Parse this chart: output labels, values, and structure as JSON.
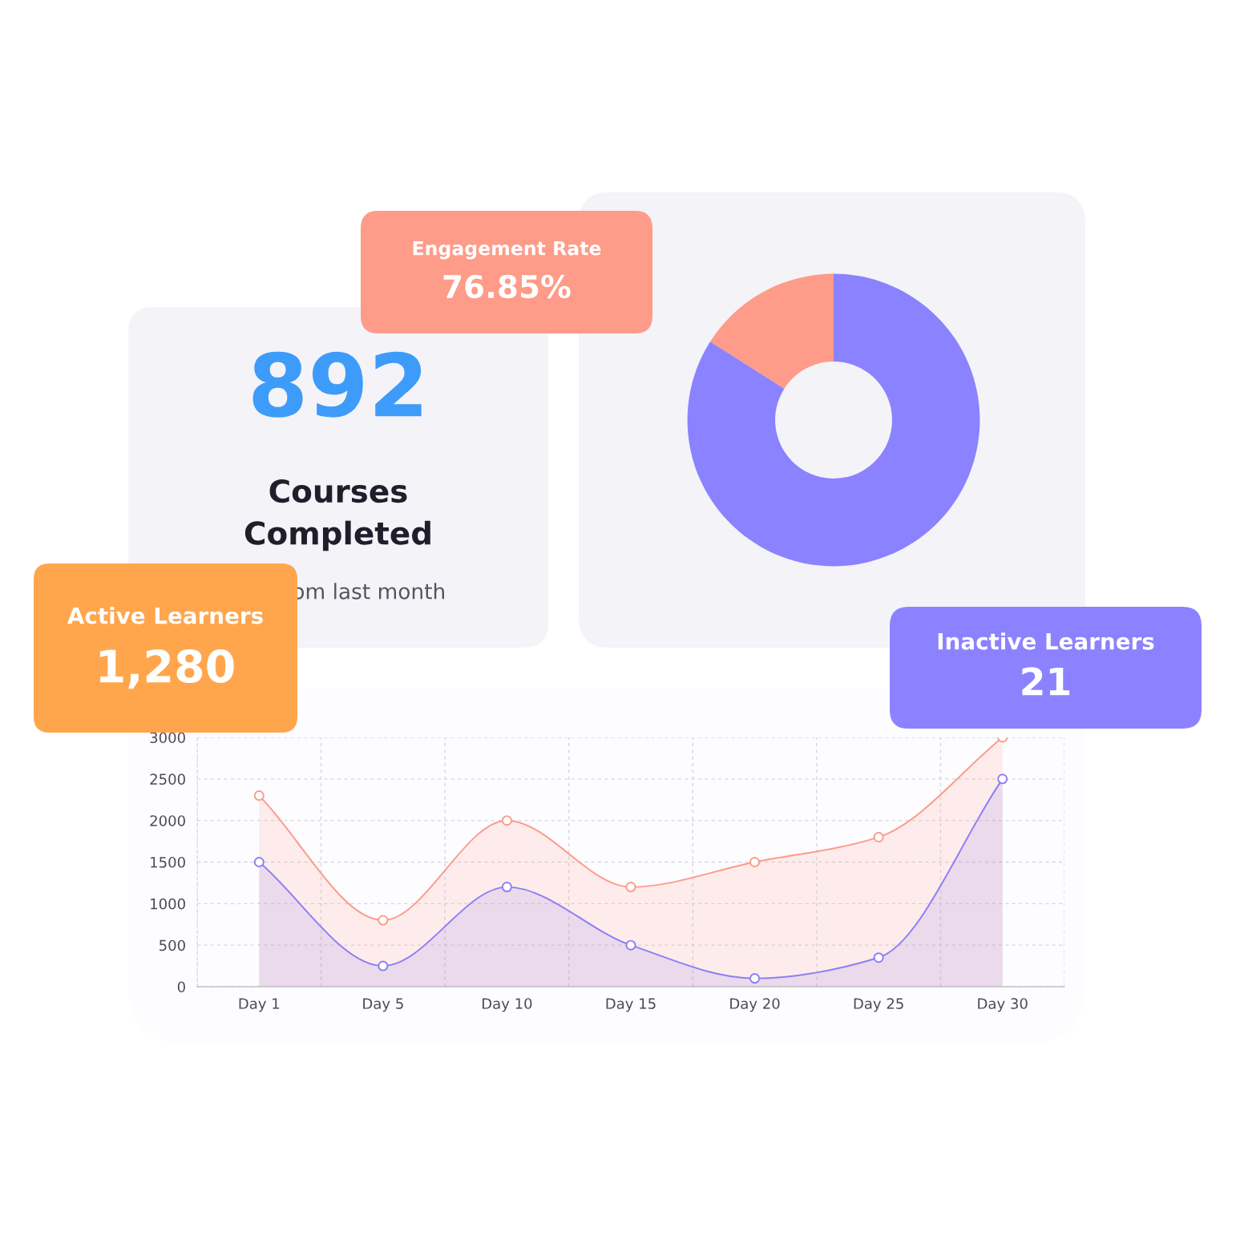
{
  "chart_data": [
    {
      "type": "other",
      "title": "Engagement Rate",
      "annotations": [
        "76.85%"
      ]
    },
    {
      "type": "donut",
      "categories": [
        null,
        null
      ],
      "values": [
        16,
        84
      ],
      "colors": [
        "#ff9b89",
        "#8b82ff"
      ]
    },
    {
      "type": "other",
      "title": "892",
      "subtitle": "Courses Completed",
      "annotations": [
        "om last month"
      ]
    },
    {
      "type": "other",
      "title": "Active Learners",
      "annotations": [
        "1,280"
      ]
    },
    {
      "type": "other",
      "title": "Inactive Learners",
      "annotations": [
        "21"
      ]
    },
    {
      "type": "area",
      "categories": [
        "Day 1",
        "Day 5",
        "Day 10",
        "Day 15",
        "Day 20",
        "Day 25",
        "Day 30"
      ],
      "ylim": [
        0,
        3000
      ],
      "yticks": [
        0,
        500,
        1000,
        1500,
        2000,
        2500,
        3000
      ],
      "grid": true,
      "marker": "circle",
      "line_style": "solid",
      "series": [
        {
          "color": "#fc9b8b",
          "values": [
            2300,
            800,
            2000,
            1200,
            1500,
            1800,
            3000
          ]
        },
        {
          "color": "#8b7ff5",
          "values": [
            1500,
            250,
            1200,
            500,
            100,
            350,
            2500
          ]
        }
      ]
    }
  ]
}
